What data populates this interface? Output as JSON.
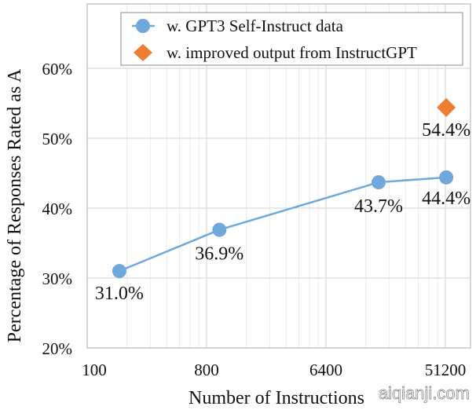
{
  "chart_data": {
    "type": "line",
    "title": "",
    "xlabel": "Number of Instructions",
    "ylabel": "Percentage of Responses Rated as A",
    "x_scale": "log",
    "x_ticks": [
      100,
      800,
      6400,
      51200
    ],
    "x_tick_labels": [
      "100",
      "800",
      "6400",
      "51200"
    ],
    "xlim": [
      100,
      80000
    ],
    "y_ticks": [
      20,
      30,
      40,
      50,
      60
    ],
    "y_tick_labels": [
      "20%",
      "30%",
      "40%",
      "50%",
      "60%"
    ],
    "ylim": [
      20,
      69.5
    ],
    "grid": true,
    "legend_position": "top-right",
    "series": [
      {
        "name": "w. GPT3 Self-Instruct data",
        "marker": "circle",
        "color": "#6fa8dc",
        "x": [
          175,
          1000,
          16000,
          52000
        ],
        "y": [
          31.0,
          36.9,
          43.7,
          44.4
        ],
        "labels": [
          "31.0%",
          "36.9%",
          "43.7%",
          "44.4%"
        ]
      },
      {
        "name": "w. improved output from InstructGPT",
        "marker": "diamond",
        "color": "#ed7d31",
        "x": [
          52000
        ],
        "y": [
          54.4
        ],
        "labels": [
          "54.4%"
        ]
      }
    ]
  },
  "watermark": "aiqianji.com"
}
